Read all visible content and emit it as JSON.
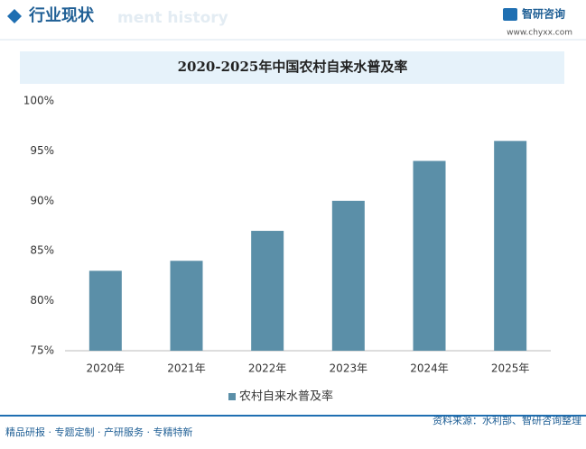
{
  "header": {
    "title": "行业现状",
    "watermark": "ment history",
    "brand": "智研咨询",
    "url": "www.chyxx.com"
  },
  "chart_data": {
    "type": "bar",
    "title": "2020-2025年中国农村自来水普及率",
    "categories": [
      "2020年",
      "2021年",
      "2022年",
      "2023年",
      "2024年",
      "2025年"
    ],
    "series": [
      {
        "name": "农村自来水普及率",
        "color": "#5b8fa8",
        "values": [
          83,
          84,
          87,
          90,
          94,
          96
        ]
      }
    ],
    "ylim": [
      75,
      100
    ],
    "yticks": [
      {
        "value": 75,
        "label": "75%"
      },
      {
        "value": 80,
        "label": "80%"
      },
      {
        "value": 85,
        "label": "85%"
      },
      {
        "value": 90,
        "label": "90%"
      },
      {
        "value": 95,
        "label": "95%"
      },
      {
        "value": 100,
        "label": "100%"
      }
    ],
    "grid": false,
    "legend": "bottom"
  },
  "footer": {
    "tagline": "精品研报 · 专题定制 · 产研服务 · 专精特新",
    "source": "资料来源：水利部、智研咨询整理"
  }
}
